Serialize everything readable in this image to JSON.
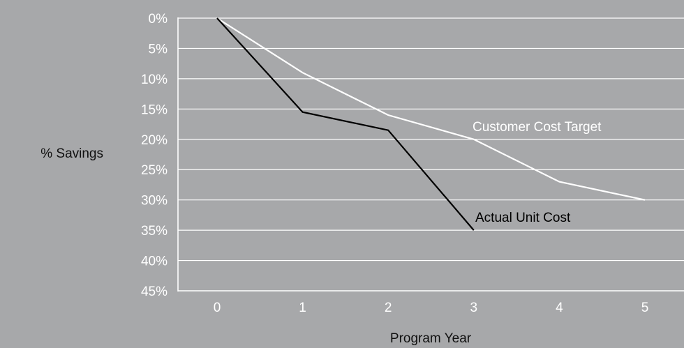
{
  "chart_data": {
    "type": "line",
    "title": "",
    "xlabel": "Program Year",
    "ylabel": "% Savings",
    "x": [
      0,
      1,
      2,
      3,
      4,
      5
    ],
    "x_tick_labels": [
      "0",
      "1",
      "2",
      "3",
      "4",
      "5"
    ],
    "y_tick_labels": [
      "0%",
      "5%",
      "10%",
      "15%",
      "20%",
      "25%",
      "30%",
      "35%",
      "40%",
      "45%"
    ],
    "ylim": [
      0,
      45
    ],
    "y_inverted": true,
    "grid": "horizontal",
    "series": [
      {
        "name": "Customer Cost Target",
        "x": [
          0,
          1,
          2,
          3,
          4,
          5
        ],
        "values": [
          0,
          9,
          16,
          20,
          27,
          30
        ],
        "color": "#ffffff"
      },
      {
        "name": "Actual Unit Cost",
        "x": [
          0,
          1,
          2,
          3
        ],
        "values": [
          0,
          15.5,
          18.5,
          35
        ],
        "color": "#000000"
      }
    ]
  },
  "colors": {
    "background": "#a7a8aa",
    "grid": "#ffffff",
    "axis_title": "#111111"
  }
}
